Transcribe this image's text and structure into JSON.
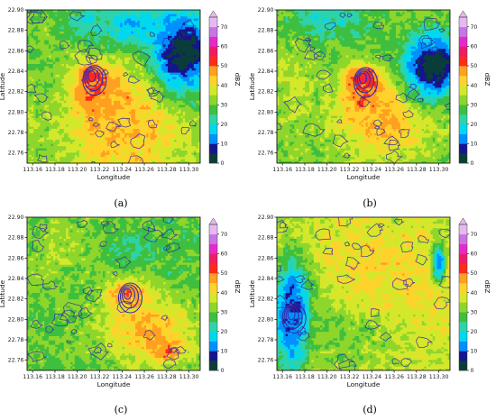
{
  "figure": {
    "colorbar": {
      "label": "dBZ",
      "ticks": [
        "0",
        "10",
        "20",
        "30",
        "40",
        "50",
        "60",
        "70"
      ],
      "levels": [
        {
          "from": 0,
          "to": 5,
          "color": "#0a3d3a"
        },
        {
          "from": 5,
          "to": 10,
          "color": "#15158e"
        },
        {
          "from": 10,
          "to": 15,
          "color": "#0090ff"
        },
        {
          "from": 15,
          "to": 20,
          "color": "#00d8f0"
        },
        {
          "from": 20,
          "to": 25,
          "color": "#2fd3a8"
        },
        {
          "from": 25,
          "to": 30,
          "color": "#3fbf3f"
        },
        {
          "from": 30,
          "to": 35,
          "color": "#8ed62c"
        },
        {
          "from": 35,
          "to": 40,
          "color": "#d4e82b"
        },
        {
          "from": 40,
          "to": 45,
          "color": "#ffd32b"
        },
        {
          "from": 45,
          "to": 50,
          "color": "#ffa020"
        },
        {
          "from": 50,
          "to": 55,
          "color": "#ff2a1a"
        },
        {
          "from": 55,
          "to": 60,
          "color": "#f01c63"
        },
        {
          "from": 60,
          "to": 65,
          "color": "#e62ac8"
        },
        {
          "from": 65,
          "to": 70,
          "color": "#c873e6"
        },
        {
          "from": 70,
          "to": 75,
          "color": "#e6b9f0"
        }
      ]
    }
  },
  "chart_data": [
    {
      "type": "heatmap",
      "caption": "(a)",
      "xlabel": "Longitude",
      "ylabel": "Latitude",
      "xticks": [
        "113.16",
        "113.18",
        "113.20",
        "113.22",
        "113.24",
        "113.26",
        "113.28",
        "113.30"
      ],
      "yticks": [
        "22.90",
        "22.88",
        "22.86",
        "22.84",
        "22.82",
        "22.80",
        "22.78",
        "22.76"
      ],
      "xlim": [
        113.155,
        113.31
      ],
      "ylim": [
        22.75,
        22.9
      ],
      "value_units": "dBZ",
      "colorbar_range": [
        0,
        75
      ],
      "background_dbz": 33,
      "features": [
        {
          "lon": 113.213,
          "lat": 22.835,
          "dbz": 64,
          "r_lon": 0.012,
          "r_lat": 0.012
        },
        {
          "lon": 113.22,
          "lat": 22.815,
          "dbz": 56,
          "r_lon": 0.02,
          "r_lat": 0.022
        },
        {
          "lon": 113.235,
          "lat": 22.8,
          "dbz": 48,
          "r_lon": 0.035,
          "r_lat": 0.04
        },
        {
          "lon": 113.25,
          "lat": 22.78,
          "dbz": 44,
          "r_lon": 0.045,
          "r_lat": 0.04
        },
        {
          "lon": 113.295,
          "lat": 22.86,
          "dbz": 0,
          "r_lon": 0.028,
          "r_lat": 0.04
        },
        {
          "lon": 113.25,
          "lat": 22.885,
          "dbz": 14,
          "r_lon": 0.035,
          "r_lat": 0.02
        },
        {
          "lon": 113.21,
          "lat": 22.885,
          "dbz": 22,
          "r_lon": 0.03,
          "r_lat": 0.02
        },
        {
          "lon": 113.165,
          "lat": 22.86,
          "dbz": 30,
          "r_lon": 0.02,
          "r_lat": 0.05
        }
      ]
    },
    {
      "type": "heatmap",
      "caption": "(b)",
      "xlabel": "Longitude",
      "ylabel": "Latitude",
      "xticks": [
        "113.16",
        "113.18",
        "113.20",
        "113.22",
        "113.24",
        "113.26",
        "113.28",
        "113.30"
      ],
      "yticks": [
        "22.90",
        "22.88",
        "22.86",
        "22.84",
        "22.82",
        "22.80",
        "22.78",
        "22.76"
      ],
      "xlim": [
        113.155,
        113.31
      ],
      "ylim": [
        22.75,
        22.9
      ],
      "value_units": "dBZ",
      "colorbar_range": [
        0,
        75
      ],
      "background_dbz": 31,
      "features": [
        {
          "lon": 113.232,
          "lat": 22.833,
          "dbz": 62,
          "r_lon": 0.014,
          "r_lat": 0.012
        },
        {
          "lon": 113.235,
          "lat": 22.815,
          "dbz": 54,
          "r_lon": 0.02,
          "r_lat": 0.022
        },
        {
          "lon": 113.25,
          "lat": 22.79,
          "dbz": 46,
          "r_lon": 0.04,
          "r_lat": 0.035
        },
        {
          "lon": 113.295,
          "lat": 22.845,
          "dbz": 0,
          "r_lon": 0.025,
          "r_lat": 0.03
        },
        {
          "lon": 113.2,
          "lat": 22.89,
          "dbz": 22,
          "r_lon": 0.04,
          "r_lat": 0.02
        },
        {
          "lon": 113.17,
          "lat": 22.82,
          "dbz": 36,
          "r_lon": 0.02,
          "r_lat": 0.04
        }
      ]
    },
    {
      "type": "heatmap",
      "caption": "(c)",
      "xlabel": "Longitude",
      "ylabel": "Latitude",
      "xticks": [
        "113.16",
        "113.18",
        "113.20",
        "113.22",
        "113.24",
        "113.26",
        "113.28",
        "113.30"
      ],
      "yticks": [
        "22.90",
        "22.88",
        "22.86",
        "22.84",
        "22.82",
        "22.80",
        "22.78",
        "22.76"
      ],
      "xlim": [
        113.155,
        113.31
      ],
      "ylim": [
        22.75,
        22.9
      ],
      "value_units": "dBZ",
      "colorbar_range": [
        0,
        75
      ],
      "background_dbz": 30,
      "features": [
        {
          "lon": 113.245,
          "lat": 22.825,
          "dbz": 50,
          "r_lon": 0.02,
          "r_lat": 0.015
        },
        {
          "lon": 113.265,
          "lat": 22.79,
          "dbz": 46,
          "r_lon": 0.04,
          "r_lat": 0.03
        },
        {
          "lon": 113.28,
          "lat": 22.77,
          "dbz": 48,
          "r_lon": 0.015,
          "r_lat": 0.012
        },
        {
          "lon": 113.29,
          "lat": 22.87,
          "dbz": 28,
          "r_lon": 0.03,
          "r_lat": 0.03
        },
        {
          "lon": 113.25,
          "lat": 22.87,
          "dbz": 24,
          "r_lon": 0.02,
          "r_lat": 0.015
        },
        {
          "lon": 113.18,
          "lat": 22.87,
          "dbz": 34,
          "r_lon": 0.03,
          "r_lat": 0.03
        }
      ]
    },
    {
      "type": "heatmap",
      "caption": "(d)",
      "xlabel": "Longitude",
      "ylabel": "Latitude",
      "xticks": [
        "113.16",
        "113.18",
        "113.20",
        "113.22",
        "113.24",
        "113.26",
        "113.28",
        "113.30"
      ],
      "yticks": [
        "22.90",
        "22.88",
        "22.86",
        "22.84",
        "22.82",
        "22.80",
        "22.78",
        "22.76"
      ],
      "xlim": [
        113.155,
        113.31
      ],
      "ylim": [
        22.75,
        22.9
      ],
      "value_units": "dBZ",
      "colorbar_range": [
        0,
        75
      ],
      "background_dbz": 36,
      "features": [
        {
          "lon": 113.168,
          "lat": 22.805,
          "dbz": 0,
          "r_lon": 0.011,
          "r_lat": 0.038
        },
        {
          "lon": 113.17,
          "lat": 22.805,
          "dbz": 8,
          "r_lon": 0.018,
          "r_lat": 0.05
        },
        {
          "lon": 113.24,
          "lat": 22.86,
          "dbz": 42,
          "r_lon": 0.05,
          "r_lat": 0.04
        },
        {
          "lon": 113.28,
          "lat": 22.83,
          "dbz": 41,
          "r_lon": 0.04,
          "r_lat": 0.04
        },
        {
          "lon": 113.3,
          "lat": 22.855,
          "dbz": 10,
          "r_lon": 0.006,
          "r_lat": 0.018
        },
        {
          "lon": 113.22,
          "lat": 22.78,
          "dbz": 30,
          "r_lon": 0.04,
          "r_lat": 0.03
        }
      ]
    }
  ]
}
